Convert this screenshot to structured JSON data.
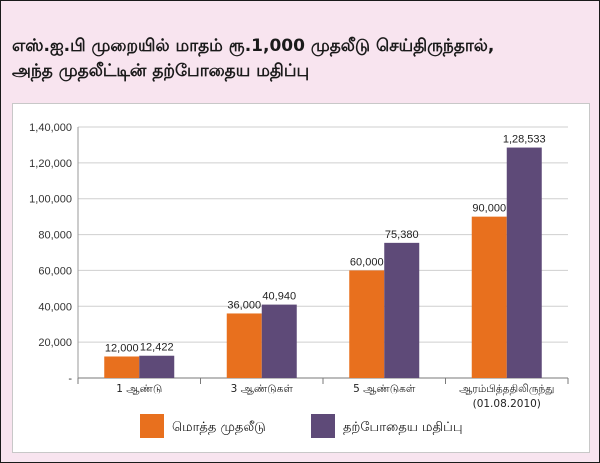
{
  "title": {
    "line1": "எஸ்.ஐ.பி முறையில் மாதம் ரூ.1,000 முதலீடு செய்திருந்தால்,",
    "line2": "அந்த முதலீட்டின் தற்போதைய மதிப்பு"
  },
  "chart_data": {
    "type": "bar",
    "categories": [
      "1 ஆண்டு",
      "3 ஆண்டுகள்",
      "5 ஆண்டுகள்",
      "ஆரம்பித்ததிலிருந்து"
    ],
    "category_sublabels": [
      "",
      "",
      "",
      "(01.08.2010)"
    ],
    "series": [
      {
        "name": "மொத்த முதலீடு",
        "color": "#e8701e",
        "values": [
          12000,
          36000,
          60000,
          90000
        ],
        "labels": [
          "12,000",
          "36,000",
          "60,000",
          "90,000"
        ]
      },
      {
        "name": "தற்போதைய மதிப்பு",
        "color": "#5e4a78",
        "values": [
          12422,
          40940,
          75380,
          128533
        ],
        "labels": [
          "12,422",
          "40,940",
          "75,380",
          "1,28,533"
        ]
      }
    ],
    "ylim": [
      0,
      140000
    ],
    "yticks": [
      {
        "value": 0,
        "label": "-"
      },
      {
        "value": 20000,
        "label": "20,000"
      },
      {
        "value": 40000,
        "label": "40,000"
      },
      {
        "value": 60000,
        "label": "60,000"
      },
      {
        "value": 80000,
        "label": "80,000"
      },
      {
        "value": 100000,
        "label": "1,00,000"
      },
      {
        "value": 120000,
        "label": "1,20,000"
      },
      {
        "value": 140000,
        "label": "1,40,000"
      }
    ],
    "grid": true,
    "legend_position": "bottom"
  }
}
